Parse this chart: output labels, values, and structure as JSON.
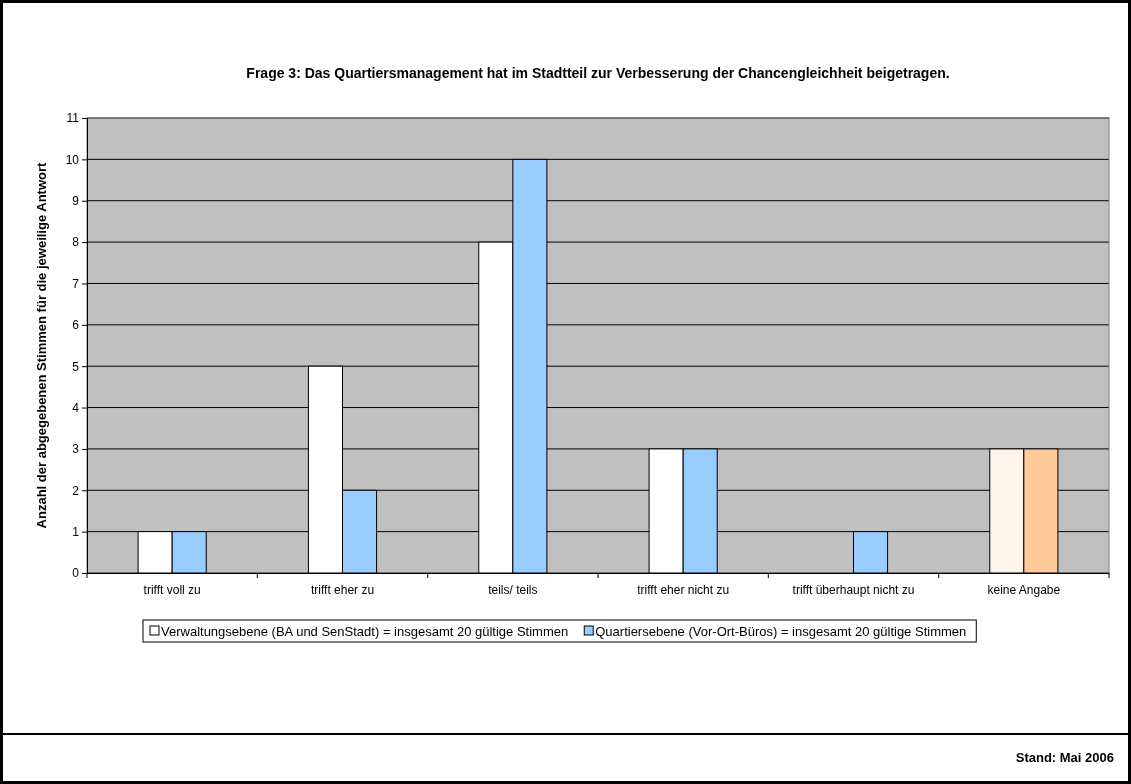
{
  "chart_data": {
    "type": "bar",
    "title": "Frage 3: Das Quartiersmanagement hat im Stadtteil zur Verbesserung der Chancengleichheit beigetragen.",
    "ylabel": "Anzahl der abgegebenen Stimmen für die jeweilige Antwort",
    "categories": [
      "trifft voll zu",
      "trifft eher zu",
      "teils/ teils",
      "trifft eher nicht zu",
      "trifft überhaupt nicht zu",
      "keine Angabe"
    ],
    "series": [
      {
        "name": "Verwaltungsebene (BA und SenStadt) = insgesamt 20 gültige Stimmen",
        "color": "#ffffff",
        "colors": [
          "#ffffff",
          "#ffffff",
          "#ffffff",
          "#ffffff",
          "#ffffff",
          "#fff4ea"
        ],
        "values": [
          1,
          5,
          8,
          3,
          0,
          3
        ]
      },
      {
        "name": "Quartiersebene (Vor-Ort-Büros) = insgesamt 20 gültige Stimmen",
        "color": "#99ccff",
        "colors": [
          "#99ccff",
          "#99ccff",
          "#99ccff",
          "#99ccff",
          "#99ccff",
          "#ffcc99"
        ],
        "values": [
          1,
          2,
          10,
          3,
          1,
          3
        ]
      }
    ],
    "ylim": [
      0,
      11
    ],
    "yticks": [
      0,
      1,
      2,
      3,
      4,
      5,
      6,
      7,
      8,
      9,
      10,
      11
    ],
    "grid": "y",
    "legend": "bottom",
    "annotations": [
      "Stand: Mai 2006"
    ]
  }
}
